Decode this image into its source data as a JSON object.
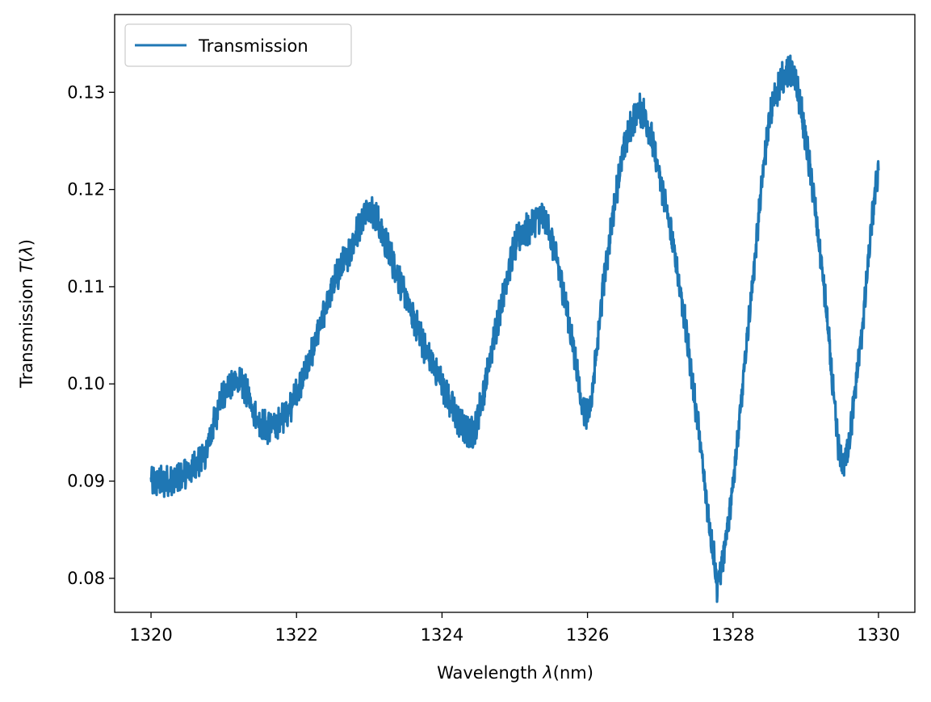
{
  "chart_data": {
    "type": "line",
    "title": "",
    "xlabel": {
      "prefix": "Wavelength ",
      "symbol": "λ",
      "suffix": "(nm)"
    },
    "ylabel": {
      "prefix": "Transmission ",
      "symbol": "T",
      "open": "(",
      "symbol2": "λ",
      "close": ")"
    },
    "xlim": [
      1319.5,
      1330.5
    ],
    "ylim": [
      0.0765,
      0.138
    ],
    "xticks": [
      1320,
      1322,
      1324,
      1326,
      1328,
      1330
    ],
    "xtick_labels": [
      "1320",
      "1322",
      "1324",
      "1326",
      "1328",
      "1330"
    ],
    "yticks": [
      0.08,
      0.09,
      0.1,
      0.11,
      0.12,
      0.13
    ],
    "ytick_labels": [
      "0.08",
      "0.09",
      "0.10",
      "0.11",
      "0.12",
      "0.13"
    ],
    "grid": false,
    "legend": {
      "position": "top-left",
      "entries": [
        {
          "label": "Transmission",
          "color": "#1f77b4"
        }
      ]
    },
    "series": [
      {
        "name": "Transmission",
        "color": "#1f77b4",
        "noise_amplitude": 0.0012,
        "x": [
          1320.0,
          1320.25,
          1320.5,
          1320.75,
          1321.0,
          1321.25,
          1321.5,
          1321.75,
          1322.0,
          1322.25,
          1322.5,
          1322.75,
          1323.0,
          1323.25,
          1323.5,
          1323.75,
          1324.0,
          1324.25,
          1324.4,
          1324.5,
          1324.75,
          1325.0,
          1325.2,
          1325.4,
          1325.6,
          1325.75,
          1326.0,
          1326.25,
          1326.5,
          1326.75,
          1327.0,
          1327.25,
          1327.5,
          1327.75,
          1327.8,
          1328.0,
          1328.25,
          1328.5,
          1328.8,
          1329.0,
          1329.25,
          1329.5,
          1329.75,
          1330.0
        ],
        "y": [
          0.09,
          0.09,
          0.091,
          0.093,
          0.099,
          0.1,
          0.096,
          0.096,
          0.099,
          0.104,
          0.11,
          0.114,
          0.118,
          0.114,
          0.109,
          0.104,
          0.1,
          0.096,
          0.095,
          0.097,
          0.106,
          0.114,
          0.116,
          0.117,
          0.112,
          0.106,
          0.097,
          0.112,
          0.124,
          0.128,
          0.121,
          0.111,
          0.097,
          0.082,
          0.08,
          0.09,
          0.109,
          0.127,
          0.132,
          0.125,
          0.11,
          0.092,
          0.104,
          0.122
        ]
      }
    ]
  }
}
